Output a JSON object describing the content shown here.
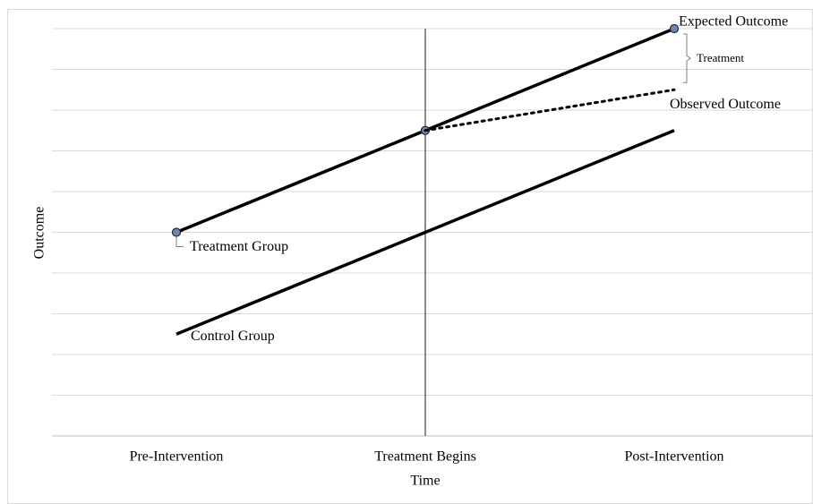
{
  "chart_data": {
    "type": "line",
    "x_label": "Time",
    "y_label": "Outcome",
    "categories": [
      "Pre-Intervention",
      "Treatment Begins",
      "Post-Intervention"
    ],
    "series": [
      {
        "name": "Treatment Group",
        "color": "#000000",
        "values": [
          5,
          7.5,
          10
        ],
        "markers": true,
        "marker_color": "#6f86b5"
      },
      {
        "name": "Control Group",
        "color": "#000000",
        "values": [
          2.5,
          5,
          7.5
        ],
        "markers": false
      },
      {
        "name": "Observed Outcome",
        "color": "#000000",
        "values": [
          null,
          7.5,
          8.5
        ],
        "markers": false,
        "dashed": true
      }
    ],
    "annotations": [
      "Expected Outcome",
      "Treatment"
    ],
    "ylim": [
      0,
      10
    ],
    "yticks": [
      0,
      1,
      2,
      3,
      4,
      5,
      6,
      7,
      8,
      9,
      10
    ],
    "grid": true,
    "vertical_line_at": "Treatment Begins"
  }
}
